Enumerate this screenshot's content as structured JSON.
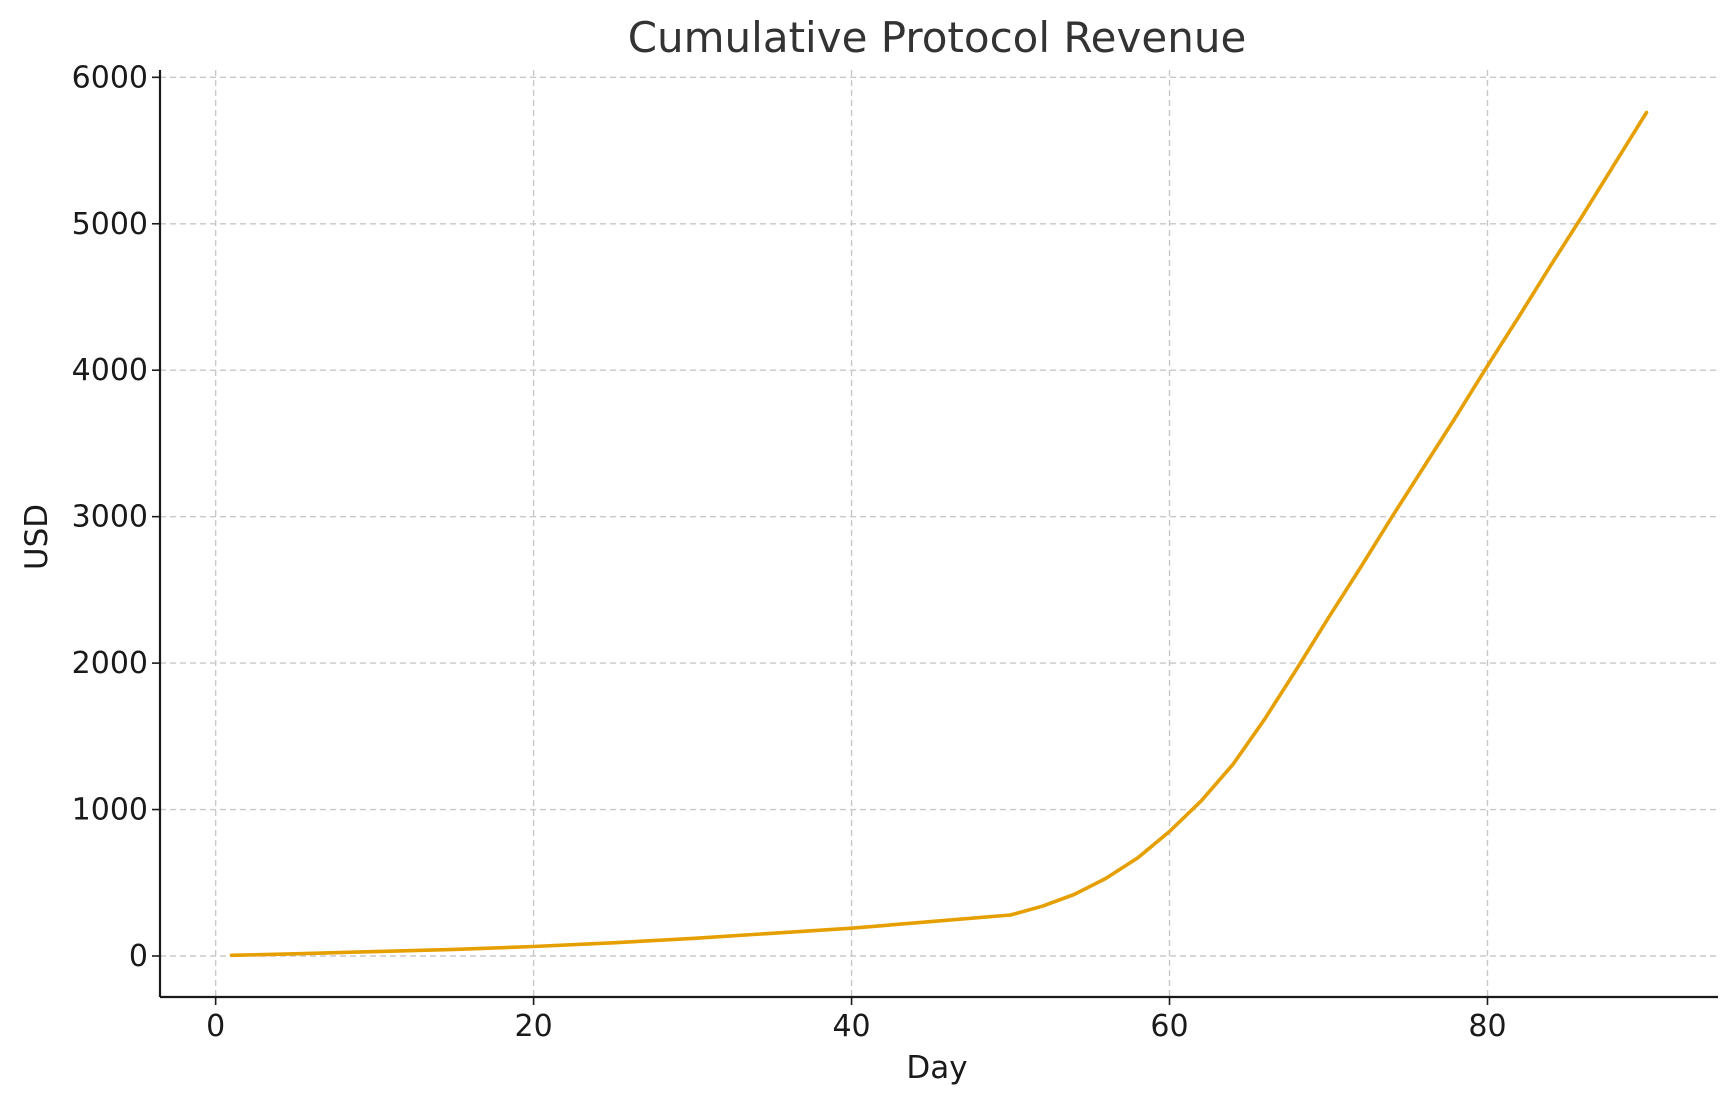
{
  "chart_data": {
    "type": "line",
    "title": "Cumulative Protocol Revenue",
    "xlabel": "Day",
    "ylabel": "USD",
    "xlim": [
      -3.5,
      94.5
    ],
    "ylim": [
      -280,
      6050
    ],
    "x_ticks": [
      0,
      20,
      40,
      60,
      80
    ],
    "y_ticks": [
      0,
      1000,
      2000,
      3000,
      4000,
      5000,
      6000
    ],
    "grid": true,
    "legend": "none",
    "series": [
      {
        "color": "#E69F00",
        "x": [
          1,
          5,
          10,
          15,
          20,
          25,
          30,
          35,
          40,
          45,
          50,
          52,
          54,
          56,
          58,
          60,
          62,
          64,
          66,
          68,
          70,
          72,
          74,
          76,
          78,
          80,
          82,
          84,
          86,
          88,
          90
        ],
        "y": [
          5,
          15,
          30,
          45,
          65,
          90,
          120,
          155,
          190,
          235,
          280,
          340,
          420,
          530,
          670,
          850,
          1060,
          1310,
          1620,
          1960,
          2310,
          2650,
          3000,
          3340,
          3680,
          4030,
          4370,
          4720,
          5060,
          5410,
          5760
        ]
      }
    ]
  }
}
